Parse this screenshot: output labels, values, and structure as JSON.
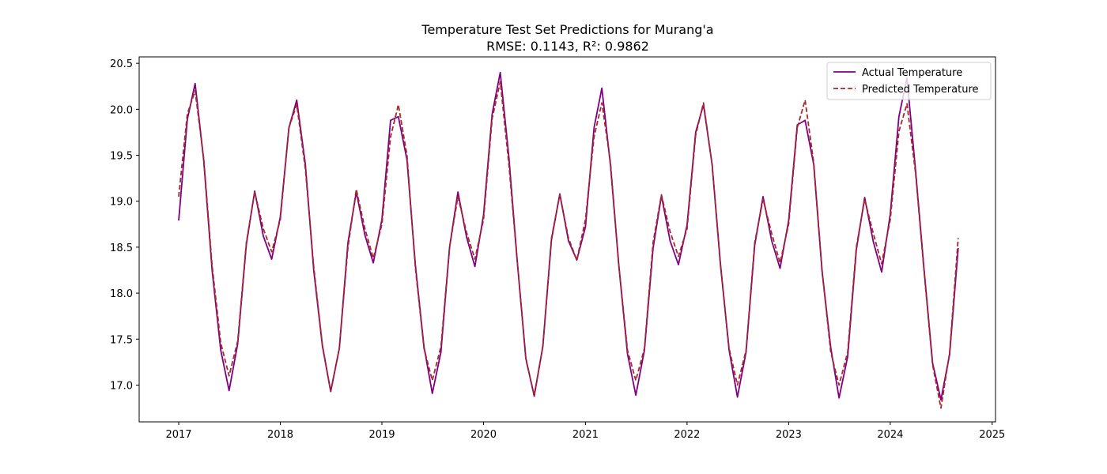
{
  "chart_data": {
    "type": "line",
    "title": "Temperature Test Set Predictions for Murang'a",
    "subtitle": "RMSE: 0.1143, R²: 0.9862",
    "xlabel": "",
    "ylabel": "",
    "x_ticks": [
      "2017",
      "2018",
      "2019",
      "2020",
      "2021",
      "2022",
      "2023",
      "2024",
      "2025"
    ],
    "y_ticks": [
      "17.0",
      "17.5",
      "18.0",
      "18.5",
      "19.0",
      "19.5",
      "20.0",
      "20.5"
    ],
    "xlim": [
      "2016-08-12",
      "2025-01-13"
    ],
    "ylim": [
      16.6,
      20.57
    ],
    "grid": false,
    "legend_position": "top-right",
    "x": [
      "2017-01-01",
      "2017-02-01",
      "2017-03-01",
      "2017-04-01",
      "2017-05-01",
      "2017-06-01",
      "2017-07-01",
      "2017-08-01",
      "2017-09-01",
      "2017-10-01",
      "2017-11-01",
      "2017-12-01",
      "2018-01-01",
      "2018-02-01",
      "2018-03-01",
      "2018-04-01",
      "2018-05-01",
      "2018-06-01",
      "2018-07-01",
      "2018-08-01",
      "2018-09-01",
      "2018-10-01",
      "2018-11-01",
      "2018-12-01",
      "2019-01-01",
      "2019-02-01",
      "2019-03-01",
      "2019-04-01",
      "2019-05-01",
      "2019-06-01",
      "2019-07-01",
      "2019-08-01",
      "2019-09-01",
      "2019-10-01",
      "2019-11-01",
      "2019-12-01",
      "2020-01-01",
      "2020-02-01",
      "2020-03-01",
      "2020-04-01",
      "2020-05-01",
      "2020-06-01",
      "2020-07-01",
      "2020-08-01",
      "2020-09-01",
      "2020-10-01",
      "2020-11-01",
      "2020-12-01",
      "2021-01-01",
      "2021-02-01",
      "2021-03-01",
      "2021-04-01",
      "2021-05-01",
      "2021-06-01",
      "2021-07-01",
      "2021-08-01",
      "2021-09-01",
      "2021-10-01",
      "2021-11-01",
      "2021-12-01",
      "2022-01-01",
      "2022-02-01",
      "2022-03-01",
      "2022-04-01",
      "2022-05-01",
      "2022-06-01",
      "2022-07-01",
      "2022-08-01",
      "2022-09-01",
      "2022-10-01",
      "2022-11-01",
      "2022-12-01",
      "2023-01-01",
      "2023-02-01",
      "2023-03-01",
      "2023-04-01",
      "2023-05-01",
      "2023-06-01",
      "2023-07-01",
      "2023-08-01",
      "2023-09-01",
      "2023-10-01",
      "2023-11-01",
      "2023-12-01",
      "2024-01-01",
      "2024-02-01",
      "2024-03-01",
      "2024-04-01",
      "2024-05-01",
      "2024-06-01",
      "2024-07-01",
      "2024-08-01",
      "2024-09-01"
    ],
    "series": [
      {
        "name": "Actual Temperature",
        "color": "#800080",
        "dash": "solid",
        "values": [
          18.79,
          19.89,
          20.28,
          19.44,
          18.25,
          17.38,
          16.94,
          17.45,
          18.53,
          19.11,
          18.62,
          18.37,
          18.83,
          19.8,
          20.1,
          19.4,
          18.25,
          17.43,
          16.93,
          17.4,
          18.55,
          19.1,
          18.63,
          18.33,
          18.8,
          19.88,
          19.92,
          19.45,
          18.31,
          17.42,
          16.91,
          17.36,
          18.5,
          19.1,
          18.61,
          18.29,
          18.85,
          19.95,
          20.4,
          19.48,
          18.35,
          17.29,
          16.88,
          17.42,
          18.58,
          19.08,
          18.57,
          18.36,
          18.72,
          19.8,
          20.23,
          19.39,
          18.3,
          17.34,
          16.89,
          17.38,
          18.49,
          19.06,
          18.57,
          18.31,
          18.74,
          19.75,
          20.05,
          19.4,
          18.32,
          17.38,
          16.87,
          17.36,
          18.52,
          19.05,
          18.57,
          18.27,
          18.79,
          19.83,
          19.88,
          19.4,
          18.24,
          17.41,
          16.86,
          17.31,
          18.47,
          19.04,
          18.56,
          18.23,
          18.86,
          19.92,
          20.34,
          19.33,
          18.27,
          17.24,
          16.84,
          17.33,
          18.49
        ]
      },
      {
        "name": "Predicted Temperature",
        "color": "#a52a2a",
        "dash": "dashed",
        "values": [
          19.05,
          19.95,
          20.2,
          19.46,
          18.3,
          17.46,
          17.1,
          17.48,
          18.55,
          19.1,
          18.7,
          18.45,
          18.8,
          19.8,
          20.05,
          19.35,
          18.29,
          17.44,
          16.93,
          17.4,
          18.5,
          19.13,
          18.7,
          18.38,
          18.75,
          19.7,
          20.05,
          19.5,
          18.28,
          17.4,
          17.05,
          17.42,
          18.5,
          19.05,
          18.66,
          18.37,
          18.8,
          19.9,
          20.3,
          19.4,
          18.35,
          17.28,
          16.89,
          17.42,
          18.6,
          19.07,
          18.6,
          18.36,
          18.8,
          19.7,
          20.07,
          19.42,
          18.3,
          17.38,
          17.05,
          17.4,
          18.55,
          19.07,
          18.67,
          18.4,
          18.7,
          19.72,
          20.07,
          19.4,
          18.3,
          17.4,
          17.0,
          17.38,
          18.55,
          19.02,
          18.65,
          18.33,
          18.75,
          19.8,
          20.1,
          19.42,
          18.25,
          17.36,
          17.0,
          17.36,
          18.5,
          19.02,
          18.65,
          18.32,
          18.8,
          19.76,
          20.06,
          19.3,
          18.25,
          17.22,
          16.75,
          17.35,
          18.6
        ]
      }
    ]
  }
}
